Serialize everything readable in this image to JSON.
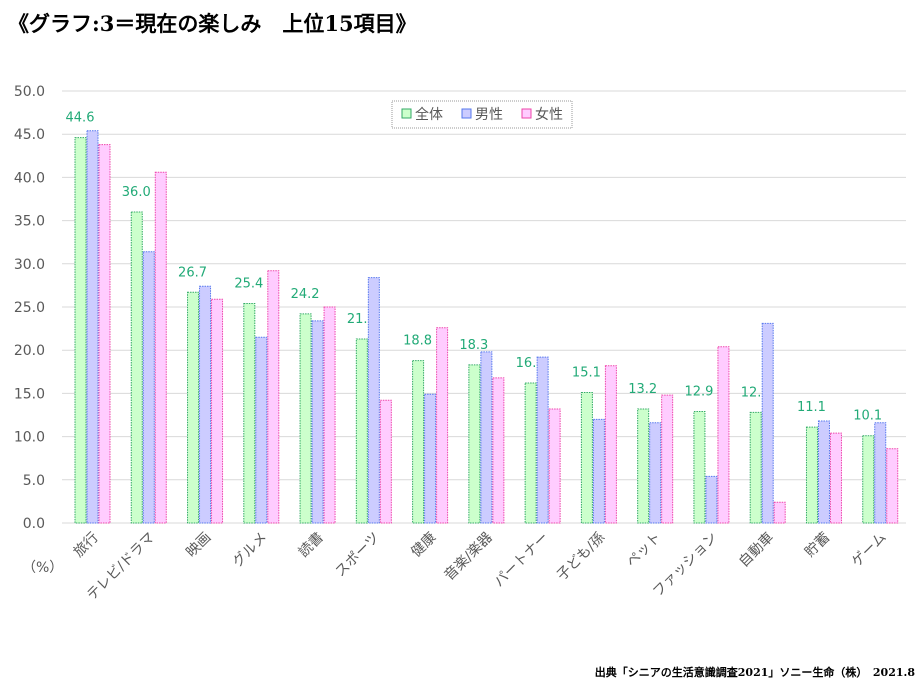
{
  "title": "《グラフ:3＝現在の楽しみ　上位15項目》",
  "source": "出典「シニアの生活意識調査2021」ソニー生命（株）　2021.8",
  "chart_data": {
    "type": "bar",
    "title": "《グラフ:3＝現在の楽しみ　上位15項目》",
    "ylabel": "（%）",
    "ylim": [
      0,
      50
    ],
    "yticks": [
      "0.0",
      "5.0",
      "10.0",
      "15.0",
      "20.0",
      "25.0",
      "30.0",
      "35.0",
      "40.0",
      "45.0",
      "50.0"
    ],
    "grid": true,
    "legend": "top-center",
    "categories": [
      "旅行",
      "テレビ/ドラマ",
      "映画",
      "グルメ",
      "読書",
      "スポーツ",
      "健康",
      "音楽/楽器",
      "パートナー",
      "子ども/孫",
      "ペット",
      "ファッション",
      "自動車",
      "貯蓄",
      "ゲーム"
    ],
    "series": [
      {
        "name": "全体",
        "fill": "#ccffcc",
        "stroke": "#33aa66",
        "labeled": true,
        "values": [
          44.6,
          36.0,
          26.7,
          25.4,
          24.2,
          21.3,
          18.8,
          18.3,
          16.2,
          15.1,
          13.2,
          12.9,
          12.8,
          11.1,
          10.1
        ]
      },
      {
        "name": "男性",
        "fill": "#ccccff",
        "stroke": "#5577ee",
        "labeled": false,
        "values": [
          45.4,
          31.4,
          27.4,
          21.5,
          23.4,
          28.4,
          14.9,
          19.8,
          19.2,
          12.0,
          11.6,
          5.4,
          23.1,
          11.8,
          11.6
        ]
      },
      {
        "name": "女性",
        "fill": "#ffccff",
        "stroke": "#ee44aa",
        "labeled": false,
        "values": [
          43.8,
          40.6,
          25.9,
          29.2,
          25.0,
          14.2,
          22.6,
          16.8,
          13.2,
          18.2,
          14.8,
          20.4,
          2.4,
          10.4,
          8.6
        ]
      }
    ]
  }
}
